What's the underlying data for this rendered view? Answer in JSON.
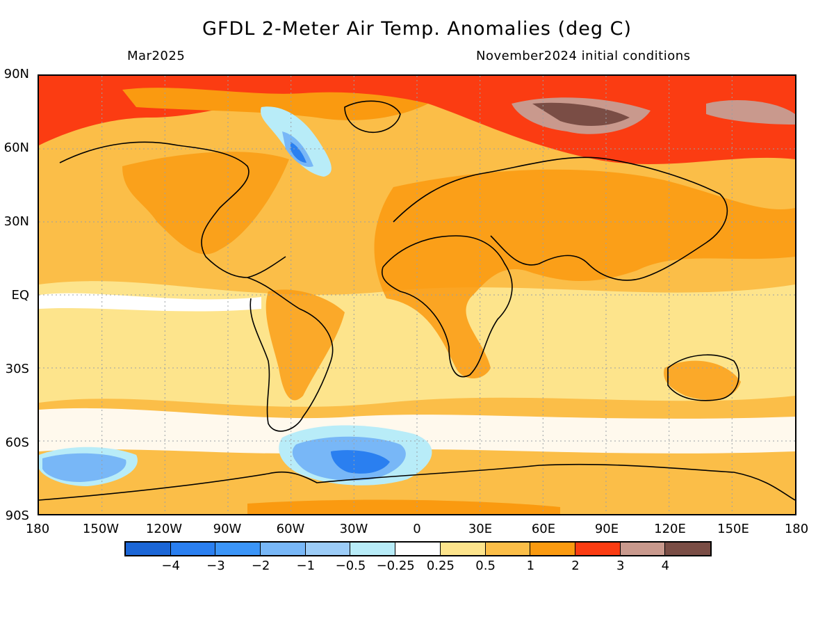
{
  "header": {
    "title": "GFDL 2-Meter Air Temp. Anomalies (deg C)",
    "valid_month": "Mar2025",
    "init_conditions": "November2024 initial conditions"
  },
  "axes": {
    "lat_labels": [
      "90N",
      "60N",
      "30N",
      "EQ",
      "30S",
      "60S",
      "90S"
    ],
    "lon_labels": [
      "180",
      "150W",
      "120W",
      "90W",
      "60W",
      "30W",
      "0",
      "30E",
      "60E",
      "90E",
      "120E",
      "150E",
      "180"
    ]
  },
  "colorbar": {
    "colors": [
      "#1b66d6",
      "#2a7ff0",
      "#3b95f8",
      "#78b7f7",
      "#9cccf7",
      "#b8ecf8",
      "#ffffff",
      "#fde48c",
      "#fbbe48",
      "#fa9a10",
      "#fb3c12",
      "#c9998d",
      "#7a4d45"
    ],
    "labels": [
      "-4",
      "-3",
      "-2",
      "-1",
      "-0.5",
      "-0.25",
      "0.25",
      "0.5",
      "1",
      "2",
      "3",
      "4"
    ]
  },
  "map": {
    "projection": "cylindrical equidistant",
    "lon_range": [
      -180,
      180
    ],
    "lat_range": [
      -90,
      90
    ],
    "field": "2-meter air temperature anomaly",
    "units": "deg C",
    "grid": true
  }
}
